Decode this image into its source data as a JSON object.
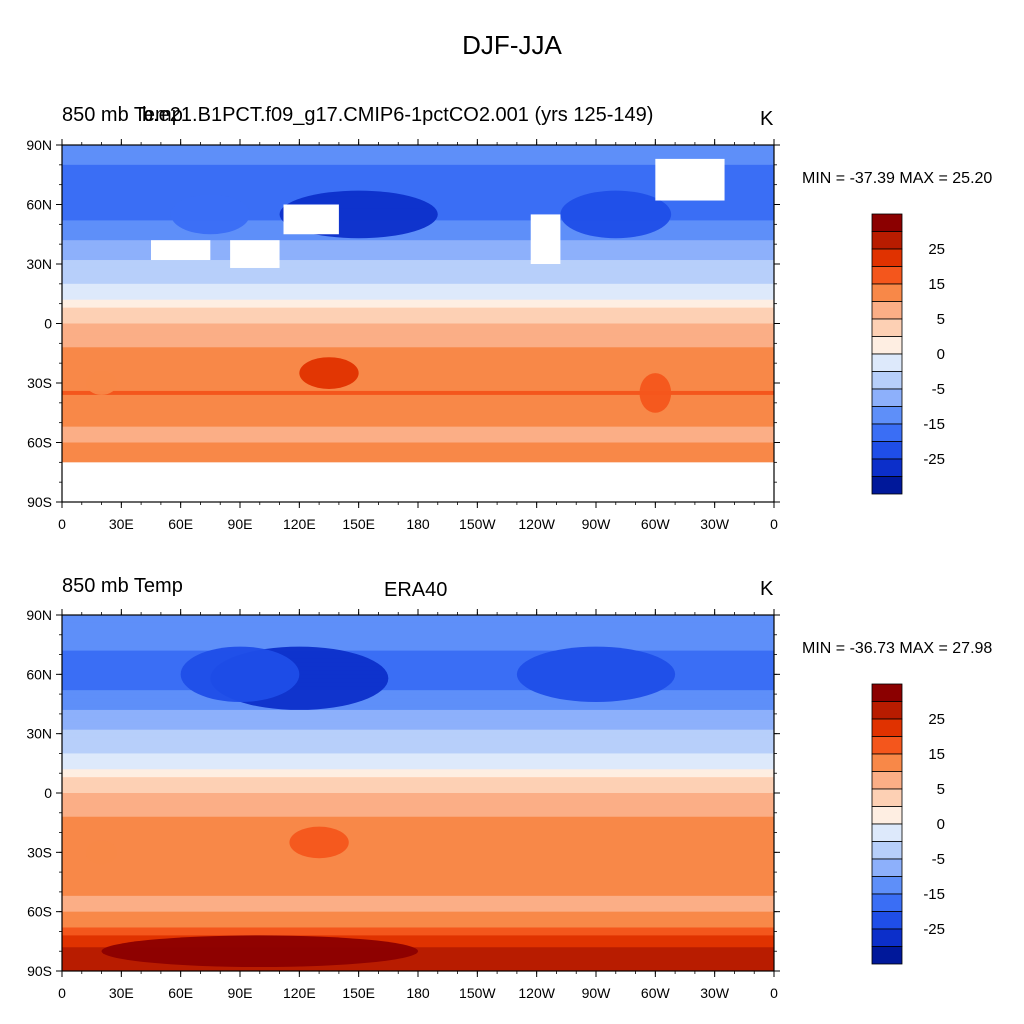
{
  "main_title": "DJF-JJA",
  "panels": [
    {
      "left_label": "850 mb Temp",
      "center_label": "b.e21.B1PCT.f09_g17.CMIP6-1pctCO2.001 (yrs 125-149)",
      "units": "K",
      "min_max": "MIN = -37.39 MAX =  25.20"
    },
    {
      "left_label": "850 mb Temp",
      "center_label": "ERA40",
      "units": "K",
      "min_max": "MIN = -36.73 MAX =  27.98"
    }
  ],
  "lat_ticks": [
    "90N",
    "60N",
    "30N",
    "0",
    "30S",
    "60S",
    "90S"
  ],
  "lon_ticks": [
    "0",
    "30E",
    "60E",
    "90E",
    "120E",
    "150E",
    "180",
    "150W",
    "120W",
    "90W",
    "60W",
    "30W",
    "0"
  ],
  "colorbar": {
    "labels": [
      "25",
      "15",
      "5",
      "0",
      "-5",
      "-15",
      "-25"
    ],
    "colors": [
      "#8b0000",
      "#b81c00",
      "#e03200",
      "#f4561c",
      "#f88848",
      "#fbae86",
      "#fdd0b4",
      "#feeee2",
      "#dde9fb",
      "#b7cffa",
      "#8db0fb",
      "#5e8ff9",
      "#3a6ef5",
      "#1f4ee8",
      "#0c2fca",
      "#00189a"
    ]
  },
  "chart_data": [
    {
      "type": "heatmap",
      "title": "850 mb Temp",
      "subtitle": "b.e21.B1PCT.f09_g17.CMIP6-1pctCO2.001 (yrs 125-149)",
      "units": "K",
      "min": -37.39,
      "max": 25.2,
      "contour_levels": [
        -35,
        -30,
        -25,
        -20,
        -15,
        -10,
        -5,
        -2,
        0,
        2,
        5,
        10,
        15,
        20,
        25,
        30
      ],
      "xlim": [
        0,
        360
      ],
      "ylim": [
        -90,
        90
      ],
      "field_note": "Cold (blue) over northern continents, warm (red) over Australia, South America and southern ocean; white masked areas over high topography",
      "zonal_profile": {
        "lat": [
          80,
          65,
          55,
          45,
          35,
          25,
          15,
          5,
          -5,
          -15,
          -25,
          -35,
          -45,
          -55,
          -65
        ],
        "value": [
          -20,
          -25,
          -22,
          -17,
          -12,
          -7,
          -3,
          1,
          3,
          6,
          9,
          10,
          7,
          4,
          6
        ]
      }
    },
    {
      "type": "heatmap",
      "title": "850 mb Temp",
      "subtitle": "ERA40",
      "units": "K",
      "min": -36.73,
      "max": 27.98,
      "contour_levels": [
        -35,
        -30,
        -25,
        -20,
        -15,
        -10,
        -5,
        -2,
        0,
        2,
        5,
        10,
        15,
        20,
        25,
        30
      ],
      "xlim": [
        0,
        360
      ],
      "ylim": [
        -90,
        90
      ],
      "field_note": "Cold (blue) over northern continents, strong warming (red) over Antarctica and southern high latitudes",
      "zonal_profile": {
        "lat": [
          80,
          65,
          55,
          45,
          35,
          25,
          15,
          5,
          -5,
          -15,
          -25,
          -35,
          -45,
          -55,
          -65,
          -75,
          -85
        ],
        "value": [
          -18,
          -22,
          -22,
          -17,
          -12,
          -7,
          -3,
          1,
          3,
          6,
          8,
          9,
          7,
          4,
          6,
          18,
          23
        ]
      }
    }
  ]
}
